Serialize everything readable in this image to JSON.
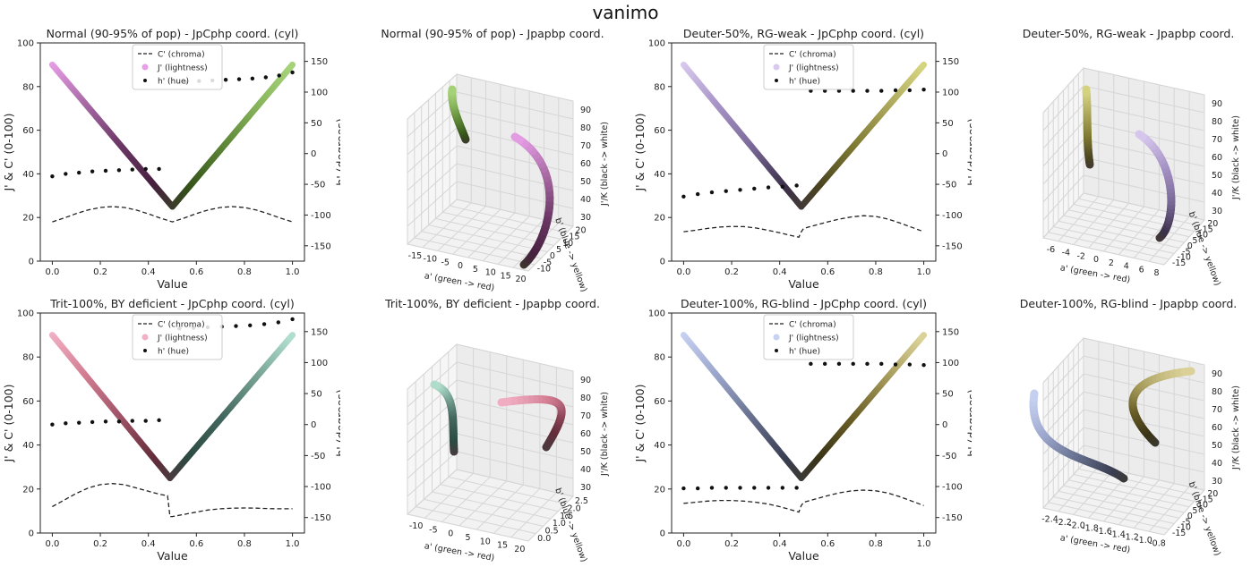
{
  "title": "vanimo",
  "colors": {
    "normal": [
      "#e79ee6",
      "#a86aa5",
      "#6c3866",
      "#46203f",
      "#335119",
      "#5b8434",
      "#86b25a",
      "#a7d37a"
    ],
    "deuter50": [
      "#d9c9ee",
      "#a895c7",
      "#7b6a99",
      "#3b304a",
      "#4a4420",
      "#7e7a32",
      "#aba65a",
      "#d6d580"
    ],
    "trit100": [
      "#f2b0c4",
      "#d27d92",
      "#a05468",
      "#642c3a",
      "#2c4a42",
      "#42665d",
      "#76a192",
      "#b2e0cf"
    ],
    "deuter100": [
      "#c7d1f1",
      "#9ba6cc",
      "#68718f",
      "#3a3e52",
      "#3a3416",
      "#6b5f27",
      "#a59a5a",
      "#ddd49b"
    ]
  },
  "chart_data": [
    {
      "type": "line",
      "title": "Normal (90-95% of pop) - JpCphp coord. (cyl)",
      "xlabel": "Value",
      "ylabel": "J' & C' (0-100)",
      "ylabel2": "h' (degrees)",
      "xlim": [
        -0.05,
        1.05
      ],
      "ylim": [
        0,
        100
      ],
      "y2lim": [
        -175,
        180
      ],
      "xticks": [
        "0.0",
        "0.2",
        "0.4",
        "0.6",
        "0.8",
        "1.0"
      ],
      "yticks": [
        "0",
        "20",
        "40",
        "60",
        "80",
        "100"
      ],
      "y2ticks": [
        "-150",
        "-100",
        "-50",
        "0",
        "50",
        "100",
        "150"
      ],
      "legend": [
        "C' (chroma)",
        "J' (lightness)",
        "h' (hue)"
      ],
      "lightness_x": [
        0,
        0.5,
        1
      ],
      "lightness_y": [
        90,
        25,
        90
      ],
      "chroma_x": [
        0,
        0.05,
        0.1,
        0.15,
        0.2,
        0.25,
        0.3,
        0.35,
        0.4,
        0.45,
        0.5,
        0.55,
        0.6,
        0.65,
        0.7,
        0.75,
        0.8,
        0.85,
        0.9,
        0.95,
        1.0
      ],
      "chroma_y": [
        18,
        19.8,
        21.8,
        23.5,
        24.6,
        25,
        24.6,
        23.4,
        21.7,
        19.7,
        18,
        19.8,
        21.8,
        23.5,
        24.6,
        25,
        24.6,
        23.4,
        21.7,
        19.7,
        18
      ],
      "hue_x": [
        0,
        0.0556,
        0.1111,
        0.1667,
        0.2222,
        0.2778,
        0.3333,
        0.3889,
        0.4444,
        0.5556,
        0.6111,
        0.6667,
        0.7222,
        0.7778,
        0.8333,
        0.8889,
        0.9444,
        1.0
      ],
      "hue_y": [
        -37,
        -33,
        -31,
        -29,
        -28,
        -27,
        -26,
        -25,
        -25,
        116,
        118,
        119,
        120,
        121,
        122,
        124,
        127,
        132
      ]
    },
    {
      "type": "scatter3d",
      "title": "Normal (90-95% of pop) - Jpapbp coord.",
      "xlabel": "a' (green -> red)",
      "ylabel": "b' (blue -> yellow)",
      "zlabel": "J'/K (black -> white)",
      "xticks": [
        "-15",
        "-10",
        "-5",
        "0",
        "5",
        "10",
        "15",
        "20"
      ],
      "yticks": [
        "-10",
        "-5",
        "0",
        "5",
        "10",
        "15",
        "20"
      ],
      "zticks": [
        "30",
        "40",
        "50",
        "60",
        "70",
        "80",
        "90"
      ]
    },
    {
      "type": "line",
      "title": "Deuter-50%, RG-weak - JpCphp coord. (cyl)",
      "xlabel": "Value",
      "ylabel": "J' & C' (0-100)",
      "ylabel2": "h' (degrees)",
      "xlim": [
        -0.05,
        1.05
      ],
      "ylim": [
        0,
        100
      ],
      "y2lim": [
        -175,
        180
      ],
      "xticks": [
        "0.0",
        "0.2",
        "0.4",
        "0.6",
        "0.8",
        "1.0"
      ],
      "yticks": [
        "0",
        "20",
        "40",
        "60",
        "80",
        "100"
      ],
      "y2ticks": [
        "-150",
        "-100",
        "-50",
        "0",
        "50",
        "100",
        "150"
      ],
      "legend": [
        "C' (chroma)",
        "J' (lightness)",
        "h' (hue)"
      ],
      "lightness_x": [
        0,
        0.49,
        1
      ],
      "lightness_y": [
        90,
        25,
        90
      ],
      "chroma_x": [
        0,
        0.05,
        0.1,
        0.15,
        0.2,
        0.25,
        0.3,
        0.35,
        0.4,
        0.45,
        0.48,
        0.49,
        0.5,
        0.55,
        0.6,
        0.65,
        0.7,
        0.75,
        0.8,
        0.85,
        0.9,
        0.95,
        1.0
      ],
      "chroma_y": [
        13.5,
        14.2,
        15,
        15.6,
        15.9,
        15.8,
        15.2,
        14.2,
        13,
        11.7,
        11,
        13.5,
        15,
        16.5,
        18,
        19.3,
        20.3,
        20.8,
        20.5,
        19.3,
        17.5,
        15.5,
        13.5
      ],
      "hue_x": [
        0,
        0.0588,
        0.1176,
        0.1765,
        0.2353,
        0.2941,
        0.3529,
        0.4118,
        0.4706,
        0.5294,
        0.5882,
        0.6471,
        0.7059,
        0.7647,
        0.8235,
        0.8824,
        0.9412,
        1.0
      ],
      "hue_y": [
        -70,
        -66,
        -63,
        -61,
        -59,
        -57,
        -55,
        -54,
        -52,
        102,
        102,
        102,
        102,
        102,
        102,
        103,
        103,
        104
      ]
    },
    {
      "type": "scatter3d",
      "title": "Deuter-50%, RG-weak - Jpapbp coord.",
      "xlabel": "a' (green -> red)",
      "ylabel": "b' (blue -> yellow)",
      "zlabel": "J'/K (black -> white)",
      "xticks": [
        "-6",
        "-4",
        "-2",
        "0",
        "2",
        "4",
        "6",
        "8"
      ],
      "yticks": [
        "-15",
        "-10",
        "-5",
        "0",
        "5",
        "10",
        "15",
        "20"
      ],
      "zticks": [
        "30",
        "40",
        "50",
        "60",
        "70",
        "80",
        "90"
      ]
    },
    {
      "type": "line",
      "title": "Trit-100%, BY deficient - JpCphp coord. (cyl)",
      "xlabel": "Value",
      "ylabel": "J' & C' (0-100)",
      "ylabel2": "h' (degrees)",
      "xlim": [
        -0.05,
        1.05
      ],
      "ylim": [
        0,
        100
      ],
      "y2lim": [
        -175,
        180
      ],
      "xticks": [
        "0.0",
        "0.2",
        "0.4",
        "0.6",
        "0.8",
        "1.0"
      ],
      "yticks": [
        "0",
        "20",
        "40",
        "60",
        "80",
        "100"
      ],
      "y2ticks": [
        "-150",
        "-100",
        "-50",
        "0",
        "50",
        "100",
        "150"
      ],
      "legend": [
        "C' (chroma)",
        "J' (lightness)",
        "h' (hue)"
      ],
      "lightness_x": [
        0,
        0.49,
        1
      ],
      "lightness_y": [
        90,
        25,
        90
      ],
      "chroma_x": [
        0,
        0.05,
        0.1,
        0.15,
        0.2,
        0.25,
        0.3,
        0.35,
        0.4,
        0.45,
        0.48,
        0.49,
        0.5,
        0.55,
        0.6,
        0.65,
        0.7,
        0.75,
        0.8,
        0.85,
        0.9,
        0.95,
        1.0
      ],
      "chroma_y": [
        12,
        15,
        18,
        20.5,
        22,
        22.5,
        22,
        20.5,
        19,
        17.5,
        17,
        7.5,
        7.5,
        8.5,
        9.5,
        10.5,
        11,
        11.3,
        11.4,
        11.3,
        11.1,
        11,
        11
      ],
      "hue_x": [
        0,
        0.0556,
        0.1111,
        0.1667,
        0.2222,
        0.2778,
        0.3333,
        0.3889,
        0.4444,
        0.5294,
        0.5882,
        0.6471,
        0.7059,
        0.7647,
        0.8235,
        0.8824,
        0.9412,
        1.0
      ],
      "hue_y": [
        0,
        2,
        3,
        4,
        5,
        5,
        6,
        6,
        7,
        155,
        156,
        157,
        158,
        159,
        160,
        162,
        165,
        170
      ]
    },
    {
      "type": "scatter3d",
      "title": "Trit-100%, BY deficient - Jpapbp coord.",
      "xlabel": "a' (green -> red)",
      "ylabel": "b' (blue -> yellow)",
      "zlabel": "J'/K (black -> white)",
      "xticks": [
        "-10",
        "-5",
        "0",
        "5",
        "10",
        "15",
        "20"
      ],
      "yticks": [
        "0.0",
        "0.5",
        "1.0",
        "1.5",
        "2.0",
        "2.5"
      ],
      "zticks": [
        "30",
        "40",
        "50",
        "60",
        "70",
        "80",
        "90"
      ]
    },
    {
      "type": "line",
      "title": "Deuter-100%, RG-blind - JpCphp coord. (cyl)",
      "xlabel": "Value",
      "ylabel": "J' & C' (0-100)",
      "ylabel2": "h' (degrees)",
      "xlim": [
        -0.05,
        1.05
      ],
      "ylim": [
        0,
        100
      ],
      "y2lim": [
        -175,
        180
      ],
      "xticks": [
        "0.0",
        "0.2",
        "0.4",
        "0.6",
        "0.8",
        "1.0"
      ],
      "yticks": [
        "0",
        "20",
        "40",
        "60",
        "80",
        "100"
      ],
      "y2ticks": [
        "-150",
        "-100",
        "-50",
        "0",
        "50",
        "100",
        "150"
      ],
      "legend": [
        "C' (chroma)",
        "J' (lightness)",
        "h' (hue)"
      ],
      "lightness_x": [
        0,
        0.49,
        1
      ],
      "lightness_y": [
        90,
        25,
        90
      ],
      "chroma_x": [
        0,
        0.05,
        0.1,
        0.15,
        0.2,
        0.25,
        0.3,
        0.35,
        0.4,
        0.45,
        0.48,
        0.49,
        0.5,
        0.55,
        0.6,
        0.65,
        0.7,
        0.75,
        0.8,
        0.85,
        0.9,
        0.95,
        1.0
      ],
      "chroma_y": [
        13.5,
        14,
        14.5,
        14.8,
        14.8,
        14.5,
        14,
        13.2,
        12,
        10.5,
        9.5,
        12.5,
        14,
        15.5,
        17,
        18.3,
        19.2,
        19.5,
        19.2,
        18.2,
        16.5,
        14.5,
        12.5
      ],
      "hue_x": [
        0,
        0.0588,
        0.1176,
        0.1765,
        0.2353,
        0.2941,
        0.3529,
        0.4118,
        0.4706,
        0.5294,
        0.5882,
        0.6471,
        0.7059,
        0.7647,
        0.8235,
        0.8824,
        0.9412,
        1.0
      ],
      "hue_y": [
        -103,
        -103,
        -102,
        -102,
        -102,
        -102,
        -102,
        -102,
        -102,
        98,
        98,
        98,
        98,
        98,
        98,
        97,
        97,
        96
      ]
    },
    {
      "type": "scatter3d",
      "title": "Deuter-100%, RG-blind - Jpapbp coord.",
      "xlabel": "a' (green -> red)",
      "ylabel": "b' (blue -> yellow)",
      "zlabel": "J'/K (black -> white)",
      "xticks": [
        "-2.4",
        "-2.2",
        "-2.0",
        "-1.8",
        "-1.6",
        "-1.4",
        "-1.2",
        "-1.0",
        "-0.8"
      ],
      "yticks": [
        "-15",
        "-10",
        "-5",
        "0",
        "5",
        "10",
        "15",
        "20"
      ],
      "zticks": [
        "30",
        "40",
        "50",
        "60",
        "70",
        "80",
        "90"
      ]
    }
  ]
}
